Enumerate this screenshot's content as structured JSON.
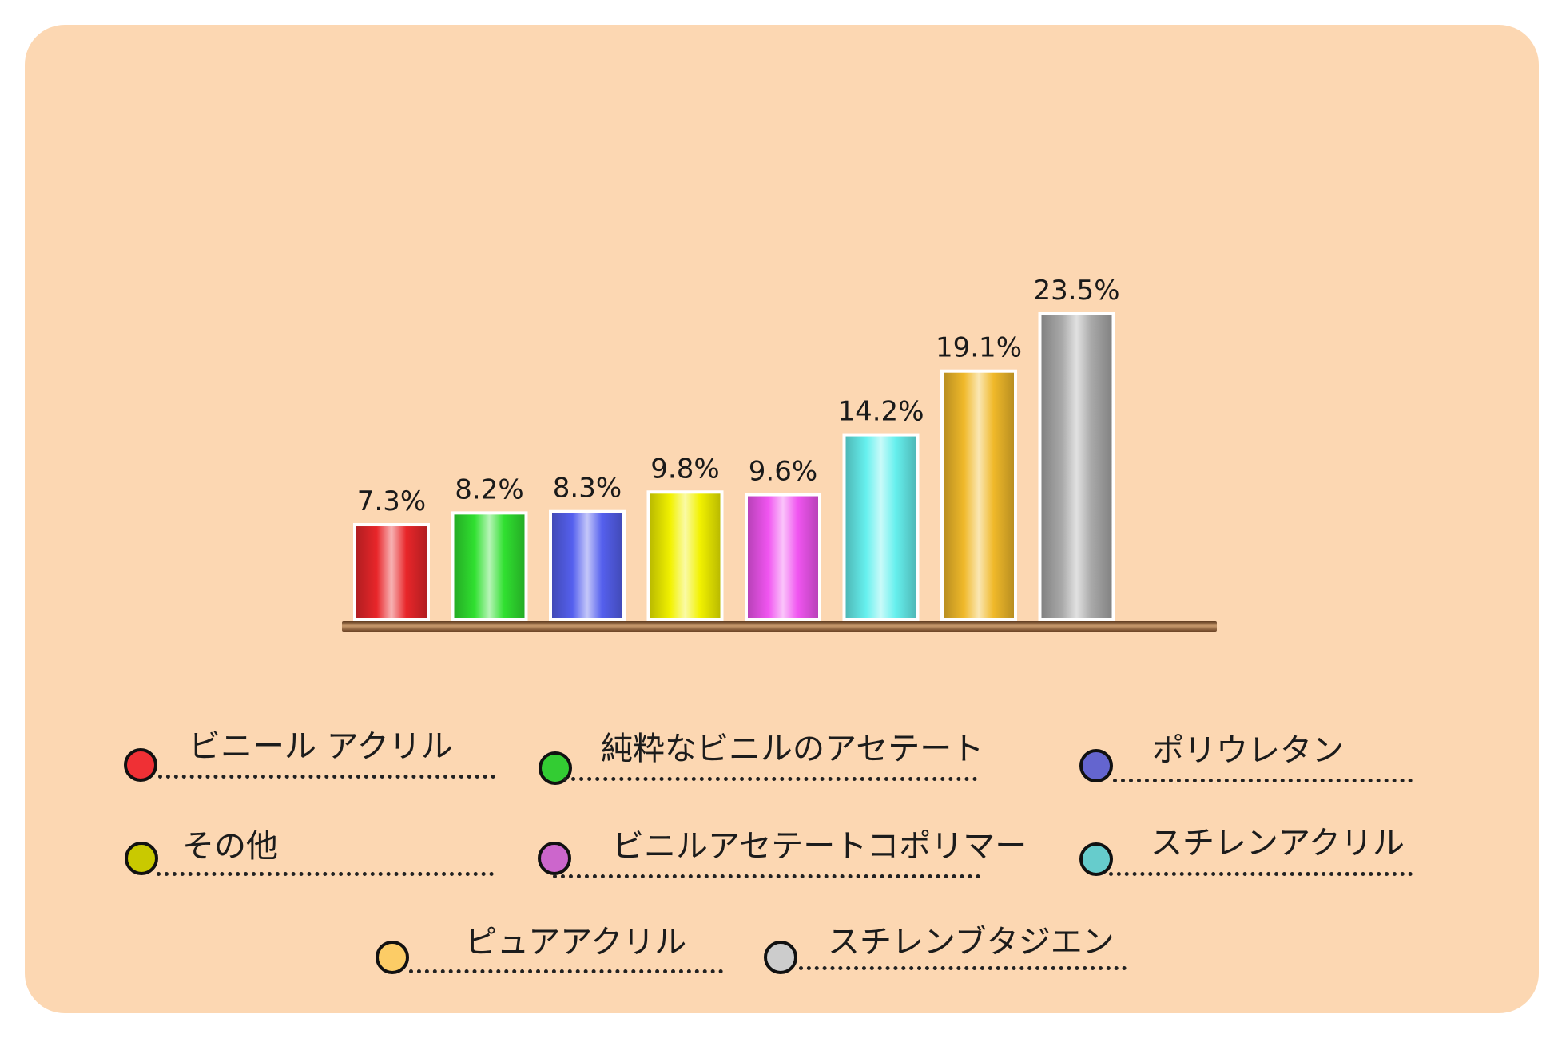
{
  "chart_data": {
    "type": "bar",
    "categories": [
      "ビニール アクリル",
      "純粋なビニルのアセテート",
      "ポリウレタン",
      "その他",
      "ビニルアセテートコポリマー",
      "スチレンアクリル",
      "ピュアアクリル",
      "スチレンブタジエン"
    ],
    "values": [
      7.3,
      8.2,
      8.3,
      9.8,
      9.6,
      14.2,
      19.1,
      23.5
    ],
    "value_labels": [
      "7.3%",
      "8.2%",
      "8.3%",
      "9.8%",
      "9.6%",
      "14.2%",
      "19.1%",
      "23.5%"
    ],
    "colors": [
      "#e8262a",
      "#30e030",
      "#5560ee",
      "#f2f200",
      "#f055f0",
      "#66f0ee",
      "#f0b92a",
      "#a9a9a9"
    ],
    "unit": "%",
    "ylim": [
      0,
      23.5
    ],
    "grid": false,
    "legend_position": "bottom",
    "title": "",
    "xlabel": "",
    "ylabel": ""
  },
  "legend": {
    "items": [
      {
        "label": "ビニール アクリル",
        "color": "#ef3035"
      },
      {
        "label": "純粋なビニルのアセテート",
        "color": "#33cc33"
      },
      {
        "label": "ポリウレタン",
        "color": "#6465cf"
      },
      {
        "label": "その他",
        "color": "#c9c900"
      },
      {
        "label": "ビニルアセテートコポリマー",
        "color": "#cc66cc"
      },
      {
        "label": "スチレンアクリル",
        "color": "#66cccc"
      },
      {
        "label": "ピュアアクリル",
        "color": "#fccc66"
      },
      {
        "label": "スチレンブタジエン",
        "color": "#cccccc"
      }
    ]
  },
  "colors": {
    "panel_background": "#fcd7b2",
    "baseline": "#8a5a33",
    "bar_outline": "#ffffff"
  }
}
